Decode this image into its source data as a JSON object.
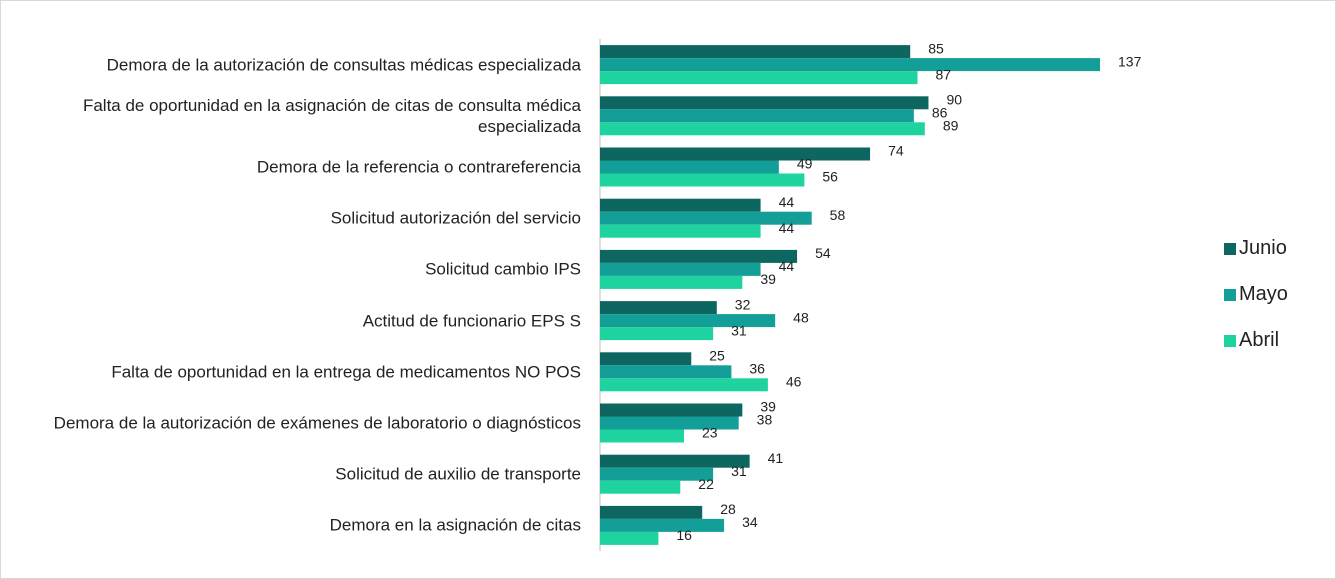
{
  "chart_data": {
    "type": "bar",
    "orientation": "horizontal",
    "categories": [
      "Demora de la autorización de consultas médicas especializada",
      "Falta de oportunidad en la asignación de citas de consulta médica especializada",
      "Demora de la referencia o contrareferencia",
      "Solicitud autorización del servicio",
      "Solicitud cambio IPS",
      "Actitud de funcionario EPS S",
      "Falta de oportunidad en la entrega de medicamentos NO POS",
      "Demora de la autorización de exámenes de laboratorio o diagnósticos",
      "Solicitud de auxilio de transporte",
      "Demora en la asignación de citas"
    ],
    "series": [
      {
        "name": "Junio",
        "color": "#0e6660",
        "values": [
          85,
          90,
          74,
          44,
          54,
          32,
          25,
          39,
          41,
          28
        ]
      },
      {
        "name": "Mayo",
        "color": "#139e98",
        "values": [
          137,
          86,
          49,
          58,
          44,
          48,
          36,
          38,
          31,
          34
        ]
      },
      {
        "name": "Abril",
        "color": "#1fd3a0",
        "values": [
          87,
          89,
          56,
          44,
          39,
          31,
          46,
          23,
          22,
          16
        ]
      }
    ],
    "legend": "right"
  }
}
